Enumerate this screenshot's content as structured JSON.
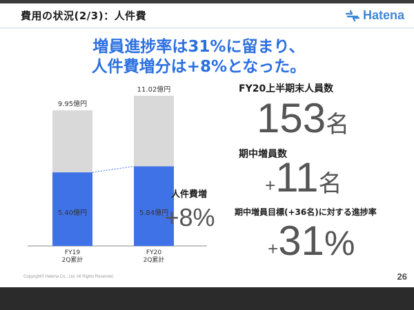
{
  "slide": {
    "title": "費用の状況(2/3)：人件費",
    "brand": "Hatena",
    "headline_lines": [
      "増員進捗率は31%に留まり、",
      "人件費増分は+8%となった。"
    ],
    "footer": "Copyright© Hatena Co., Ltd.   All Rights Reserved.",
    "page_number": "26"
  },
  "colors": {
    "accent": "#2a6fe0",
    "bar_blue": "#3f72e6",
    "bar_gray": "#d9d9d9",
    "brand": "#3f86d6"
  },
  "chart_data": {
    "type": "bar",
    "categories": [
      [
        "FY19",
        "2Q累計"
      ],
      [
        "FY20",
        "2Q累計"
      ]
    ],
    "series": [
      {
        "values": [
          5.4,
          5.84
        ],
        "labels": [
          "5.40億円",
          "5.84億円"
        ],
        "color": "#3f72e6"
      },
      {
        "values": [
          4.55,
          5.18
        ],
        "color": "#d9d9d9"
      }
    ],
    "totals": [
      9.95,
      11.02
    ],
    "total_labels": [
      "9.95億円",
      "11.02億円"
    ],
    "unit": "億円",
    "ylim": [
      0,
      11.02
    ],
    "growth_label": "人件費増",
    "growth_value": "+8%"
  },
  "metrics": [
    {
      "label": "FY20上半期末人員数",
      "value": "153",
      "unit": "名",
      "prefix": ""
    },
    {
      "label": "期中増員数",
      "value": "11",
      "unit": "名",
      "prefix": "+"
    },
    {
      "label": "期中増員目標(+36名)に対する進捗率",
      "value": "31",
      "unit": "%",
      "prefix": "+"
    }
  ]
}
